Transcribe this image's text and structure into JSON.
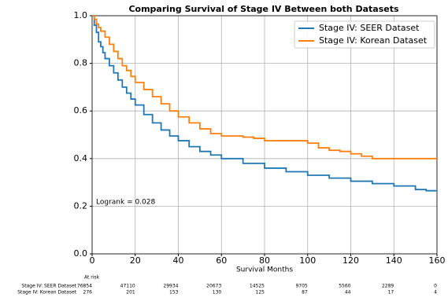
{
  "chart_data": {
    "type": "line",
    "step": "post",
    "title": "Comparing Survival of Stage IV Between both Datasets",
    "xlabel": "Survival Months",
    "xlim": [
      0,
      160
    ],
    "xticks": [
      0,
      20,
      40,
      60,
      80,
      100,
      120,
      140,
      160
    ],
    "ylim": [
      0,
      1
    ],
    "yticks": [
      {
        "value": 0,
        "label": "0.0"
      },
      {
        "value": 0.2,
        "label": "0.2"
      },
      {
        "value": 0.4,
        "label": "0.4"
      },
      {
        "value": 0.6,
        "label": "0.6"
      },
      {
        "value": 0.8,
        "label": "0.8"
      },
      {
        "value": 1,
        "label": "1.0"
      }
    ],
    "grid": true,
    "legend": "upper right",
    "series": [
      {
        "name": "Stage IV: SEER Dataset",
        "color": "#1f77b4",
        "x": [
          0,
          1,
          2,
          3,
          4,
          5,
          6,
          8,
          10,
          12,
          14,
          16,
          18,
          20,
          24,
          28,
          32,
          36,
          40,
          45,
          50,
          55,
          60,
          70,
          80,
          90,
          100,
          110,
          120,
          130,
          140,
          150,
          155,
          160
        ],
        "values": [
          1.0,
          0.96,
          0.93,
          0.89,
          0.87,
          0.845,
          0.82,
          0.79,
          0.76,
          0.73,
          0.7,
          0.675,
          0.65,
          0.625,
          0.585,
          0.55,
          0.52,
          0.495,
          0.475,
          0.45,
          0.43,
          0.415,
          0.4,
          0.38,
          0.36,
          0.345,
          0.33,
          0.318,
          0.305,
          0.295,
          0.285,
          0.27,
          0.265,
          0.265
        ]
      },
      {
        "name": "Stage IV: Korean Dataset",
        "color": "#ff7f0e",
        "x": [
          0,
          1,
          2,
          3,
          4,
          6,
          8,
          10,
          12,
          14,
          16,
          18,
          20,
          24,
          28,
          32,
          36,
          40,
          45,
          50,
          55,
          60,
          70,
          75,
          80,
          95,
          100,
          105,
          110,
          115,
          120,
          125,
          130,
          160
        ],
        "values": [
          1.0,
          0.985,
          0.965,
          0.95,
          0.935,
          0.91,
          0.88,
          0.85,
          0.82,
          0.79,
          0.77,
          0.745,
          0.72,
          0.69,
          0.66,
          0.63,
          0.6,
          0.575,
          0.55,
          0.525,
          0.505,
          0.495,
          0.49,
          0.485,
          0.475,
          0.475,
          0.465,
          0.445,
          0.435,
          0.43,
          0.42,
          0.41,
          0.4,
          0.4
        ]
      }
    ],
    "annotation": "Logrank = 0.028",
    "at_risk": {
      "title": "At risk",
      "rows": [
        {
          "name": "Stage IV: SEER Dataset",
          "values": [
            76854,
            47110,
            29934,
            20673,
            14525,
            9705,
            5560,
            2289,
            0
          ]
        },
        {
          "name": "Stage IV: Korean Dataset",
          "values": [
            276,
            201,
            153,
            130,
            125,
            87,
            44,
            17,
            4
          ]
        }
      ]
    }
  }
}
